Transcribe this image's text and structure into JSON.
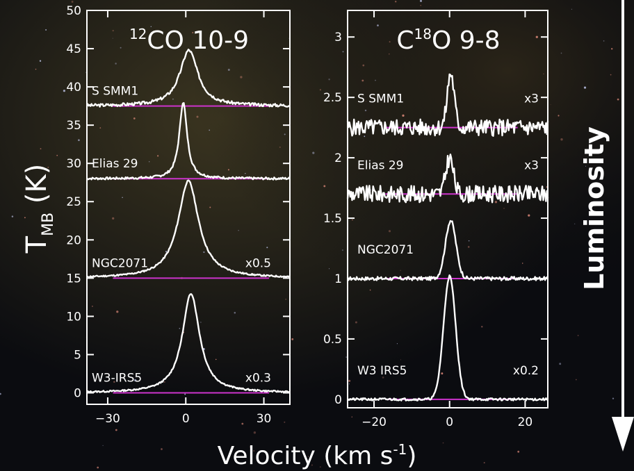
{
  "figure": {
    "ylabel_main": "T",
    "ylabel_sub": "MB",
    "ylabel_unit": " (K)",
    "xlabel_main": "Velocity (km s",
    "xlabel_sup": "-1",
    "xlabel_close": ")",
    "side_label": "Luminosity",
    "colors": {
      "spectrum": "#ffffff",
      "baseline": "#cc33cc",
      "background": "#0b0c10"
    }
  },
  "chart_data": [
    {
      "type": "line",
      "title_sup": "12",
      "title_main": "CO 10-9",
      "xlim": [
        -38,
        40
      ],
      "ylim": [
        -1.5,
        50
      ],
      "xticks": [
        -30,
        0,
        30
      ],
      "xtick_labels": [
        "−30",
        "0",
        "30"
      ],
      "yticks": [
        0,
        5,
        10,
        15,
        20,
        25,
        30,
        35,
        40,
        45,
        50
      ],
      "ytick_labels": [
        "0",
        "5",
        "10",
        "15",
        "20",
        "25",
        "30",
        "35",
        "40",
        "45",
        "50"
      ],
      "series": [
        {
          "name": "S SMM1",
          "scale": "",
          "baseline": 37.5,
          "peak_x": 1.2,
          "peak": 7.3,
          "width": 4.2,
          "shape": "lorentz",
          "noise": 0.2,
          "seed": 3
        },
        {
          "name": "Elias 29",
          "scale": "",
          "baseline": 28.0,
          "peak_x": -1.0,
          "peak": 10.0,
          "width": 1.8,
          "shape": "lorentz",
          "noise": 0.15,
          "seed": 7
        },
        {
          "name": "NGC2071",
          "scale": "x0.5",
          "baseline": 15.0,
          "peak_x": 1.0,
          "peak": 12.7,
          "width": 4.8,
          "shape": "lorentz",
          "noise": 0.1,
          "seed": 11
        },
        {
          "name": "W3-IRS5",
          "scale": "x0.3",
          "baseline": 0.0,
          "peak_x": 2.0,
          "peak": 13.0,
          "width": 4.0,
          "shape": "lorentz",
          "noise": 0.1,
          "seed": 13
        }
      ]
    },
    {
      "type": "line",
      "title_pre": "C",
      "title_sup": "18",
      "title_main": "O 9-8",
      "xlim": [
        -27,
        26
      ],
      "ylim": [
        -0.07,
        3.22
      ],
      "xticks": [
        -20,
        0,
        20
      ],
      "xtick_labels": [
        "−20",
        "0",
        "20"
      ],
      "yticks": [
        0,
        0.5,
        1,
        1.5,
        2,
        2.5,
        3
      ],
      "ytick_labels": [
        "0",
        "0.5",
        "1",
        "1.5",
        "2",
        "2.5",
        "3"
      ],
      "series": [
        {
          "name": "S SMM1",
          "scale": "x3",
          "baseline": 2.25,
          "peak_x": 0.3,
          "peak": 0.45,
          "width": 0.9,
          "shape": "gauss",
          "noise": 0.07,
          "seed": 5
        },
        {
          "name": "Elias 29",
          "scale": "x3",
          "baseline": 1.7,
          "peak_x": 0.0,
          "peak": 0.3,
          "width": 1.0,
          "shape": "gauss",
          "noise": 0.07,
          "seed": 9
        },
        {
          "name": "NGC2071",
          "scale": "",
          "baseline": 1.0,
          "peak_x": 0.3,
          "peak": 0.48,
          "width": 1.4,
          "shape": "gauss",
          "noise": 0.015,
          "seed": 17
        },
        {
          "name": "W3 IRS5",
          "scale": "x0.2",
          "baseline": 0.0,
          "peak_x": 0.0,
          "peak": 1.02,
          "width": 1.6,
          "shape": "gauss",
          "noise": 0.01,
          "seed": 21
        }
      ]
    }
  ]
}
